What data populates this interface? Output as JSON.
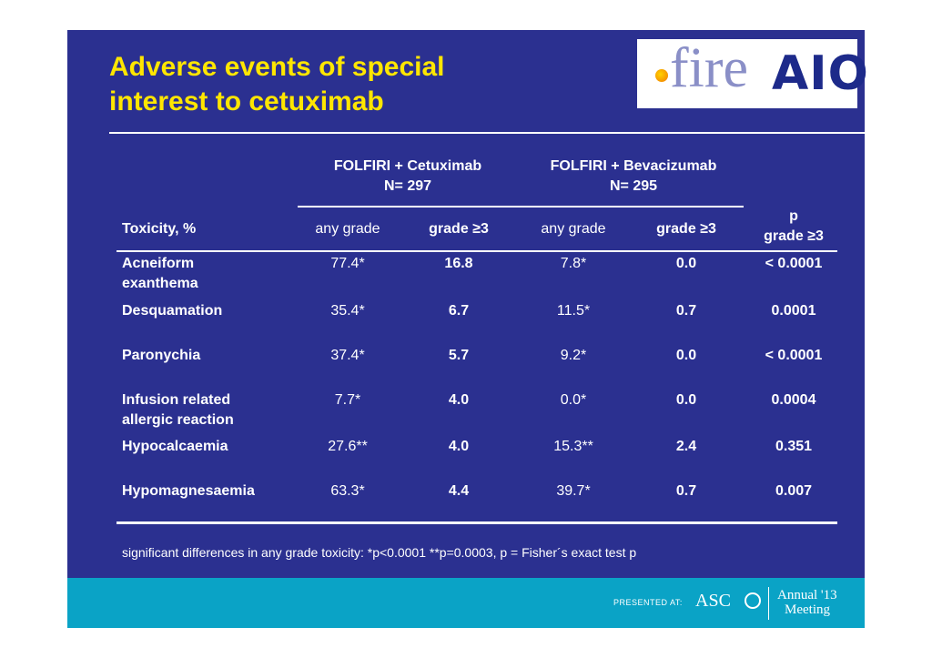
{
  "slide": {
    "title_line1": "Adverse events of special",
    "title_line2": "interest to cetuximab"
  },
  "logos": {
    "fire": "fire",
    "aio": "AIO"
  },
  "table": {
    "group_headers": [
      {
        "name": "FOLFIRI + Cetuximab",
        "n": "N= 297"
      },
      {
        "name": "FOLFIRI + Bevacizumab",
        "n": "N= 295"
      }
    ],
    "columns": {
      "toxicity": "Toxicity, %",
      "any_grade_1": "any grade",
      "grade3_1": "grade ≥3",
      "any_grade_2": "any grade",
      "grade3_2": "grade ≥3",
      "p_line1": "p",
      "p_line2": "grade ≥3"
    },
    "rows": [
      {
        "name1": "Acneiform",
        "name2": "exanthema",
        "cet_any": "77.4*",
        "cet_g3": "16.8",
        "bev_any": "7.8*",
        "bev_g3": "0.0",
        "p": "< 0.0001"
      },
      {
        "name1": "Desquamation",
        "name2": "",
        "cet_any": "35.4*",
        "cet_g3": "6.7",
        "bev_any": "11.5*",
        "bev_g3": "0.7",
        "p": "0.0001"
      },
      {
        "name1": "Paronychia",
        "name2": "",
        "cet_any": "37.4*",
        "cet_g3": "5.7",
        "bev_any": "9.2*",
        "bev_g3": "0.0",
        "p": "< 0.0001"
      },
      {
        "name1": "Infusion related",
        "name2": "allergic reaction",
        "cet_any": "7.7*",
        "cet_g3": "4.0",
        "bev_any": "0.0*",
        "bev_g3": "0.0",
        "p": "0.0004"
      },
      {
        "name1": "Hypocalcaemia",
        "name2": "",
        "cet_any": "27.6**",
        "cet_g3": "4.0",
        "bev_any": "15.3**",
        "bev_g3": "2.4",
        "p": "0.351"
      },
      {
        "name1": "Hypomagnesaemia",
        "name2": "",
        "cet_any": "63.3*",
        "cet_g3": "4.4",
        "bev_any": "39.7*",
        "bev_g3": "0.7",
        "p": "0.007"
      }
    ]
  },
  "footnote": "significant differences in any grade toxicity: *p<0.0001 **p=0.0003, p = Fisher´s exact test p",
  "footer": {
    "presented_at": "PRESENTED AT:",
    "asco": "ASC",
    "annual": "Annual '13",
    "meeting": "Meeting"
  },
  "colors": {
    "background": "#2b3090",
    "title": "#ffe600",
    "footer": "#0aa3c6"
  }
}
